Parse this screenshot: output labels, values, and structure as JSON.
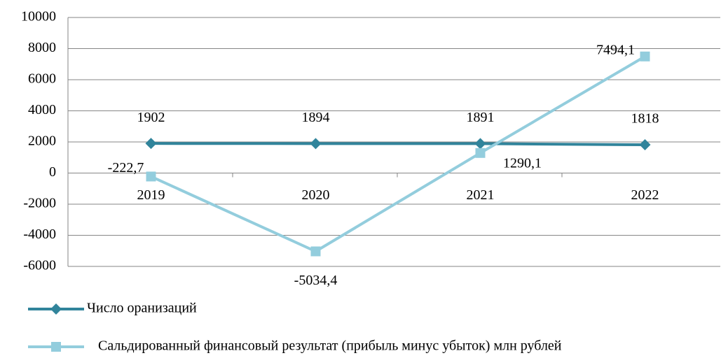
{
  "chart_data": {
    "type": "line",
    "categories": [
      "2019",
      "2020",
      "2021",
      "2022"
    ],
    "series": [
      {
        "name": "Число оранизаций",
        "color": "#31849b",
        "marker": "diamond",
        "values": [
          1902,
          1894,
          1891,
          1818
        ]
      },
      {
        "name": "Сальдированный финансовый результат (прибыль минус убыток) млн рублей",
        "color": "#93cddd",
        "marker": "square",
        "values": [
          -222.7,
          -5034.4,
          1290.1,
          7494.1
        ],
        "value_labels": [
          "-222,7",
          "-5034,4",
          "1290,1",
          "7494,1"
        ]
      }
    ],
    "ylim": [
      -6000,
      10000
    ],
    "yticks": [
      -6000,
      -4000,
      -2000,
      0,
      2000,
      4000,
      6000,
      8000,
      10000
    ],
    "grid": true
  }
}
